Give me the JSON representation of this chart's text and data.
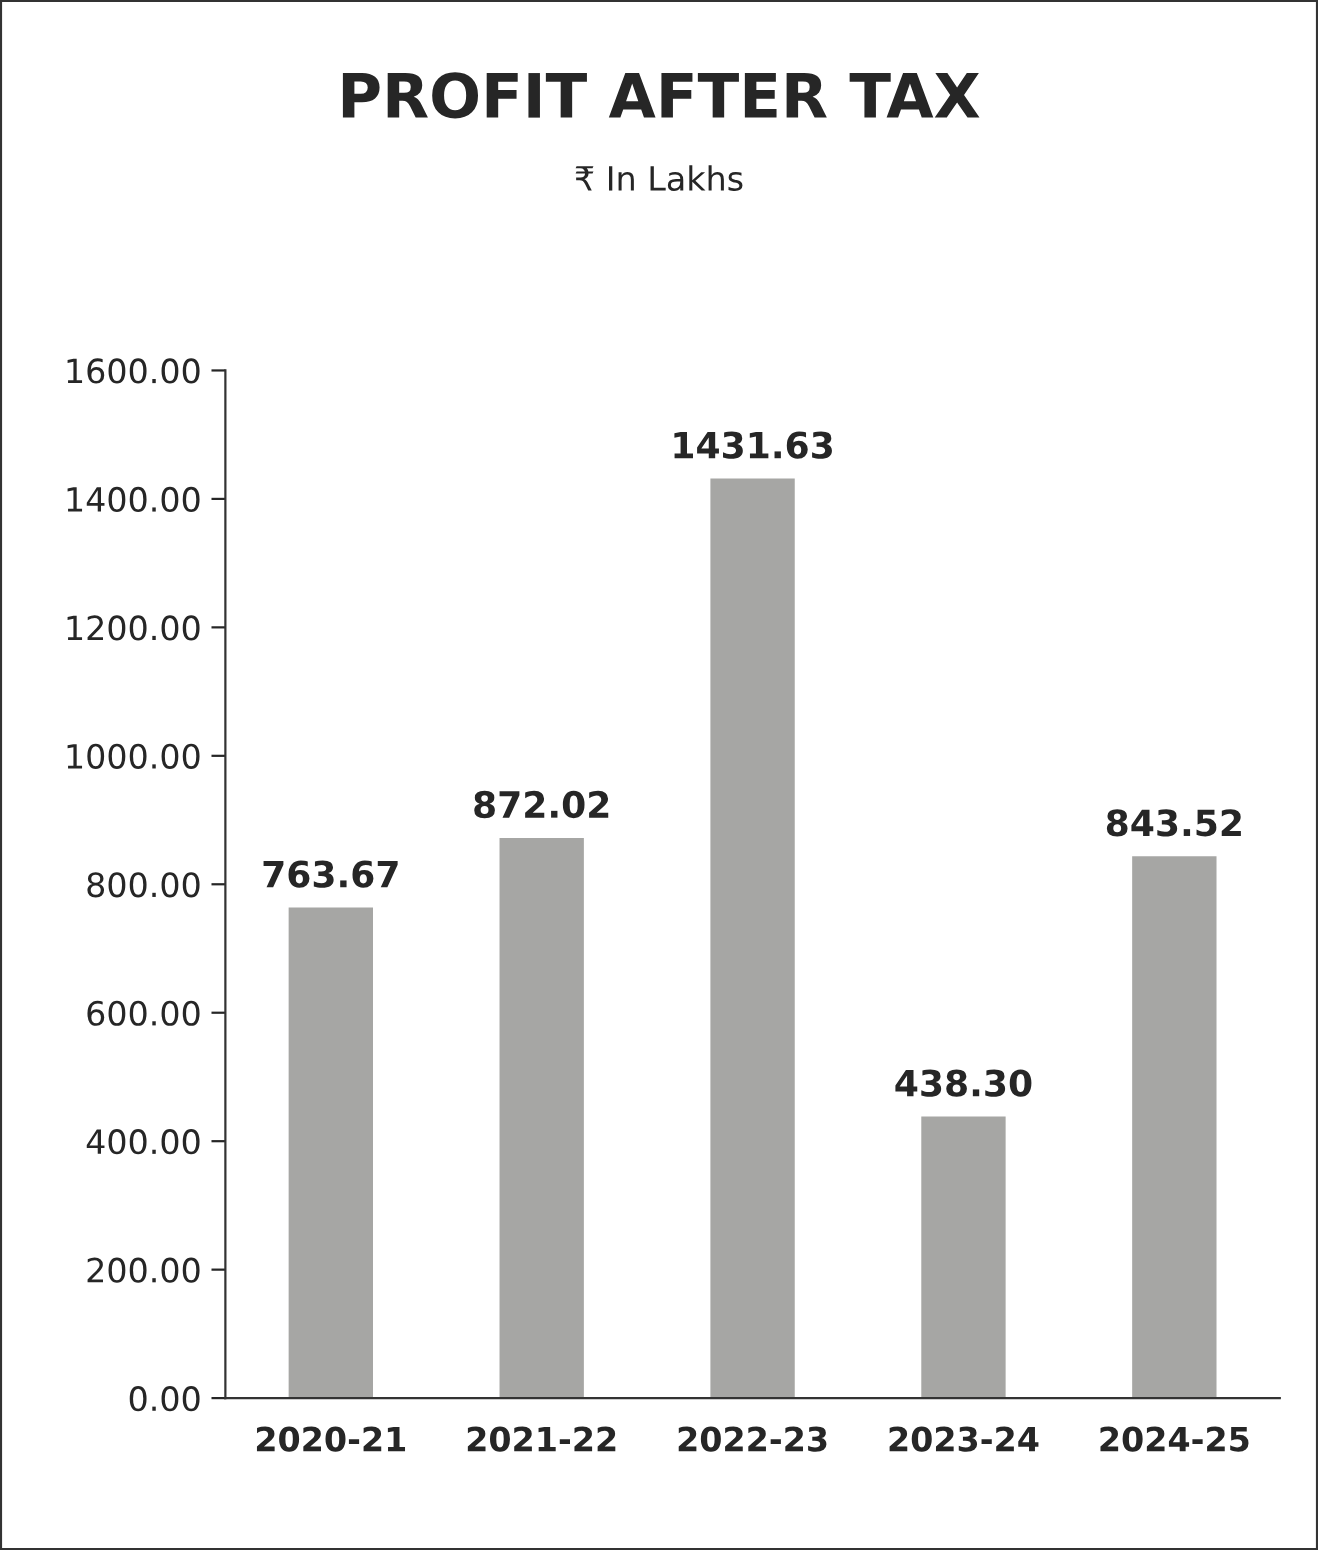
{
  "chart_data": {
    "type": "bar",
    "title": "PROFIT AFTER TAX",
    "subtitle": "₹ In Lakhs",
    "categories": [
      "2020-21",
      "2021-22",
      "2022-23",
      "2023-24",
      "2024-25"
    ],
    "values": [
      763.67,
      872.02,
      1431.63,
      438.3,
      843.52
    ],
    "value_labels": [
      "763.67",
      "872.02",
      "1431.63",
      "438.30",
      "843.52"
    ],
    "color": "#a6a6a4",
    "ylim": [
      0,
      1600
    ],
    "yticks": [
      {
        "value": 0,
        "label": "0.00"
      },
      {
        "value": 200,
        "label": "200.00"
      },
      {
        "value": 400,
        "label": "400.00"
      },
      {
        "value": 600,
        "label": "600.00"
      },
      {
        "value": 800,
        "label": "800.00"
      },
      {
        "value": 1000,
        "label": "1000.00"
      },
      {
        "value": 1200,
        "label": "1200.00"
      },
      {
        "value": 1400,
        "label": "1400.00"
      },
      {
        "value": 1600,
        "label": "1600.00"
      }
    ],
    "grid": false,
    "legend": false
  }
}
